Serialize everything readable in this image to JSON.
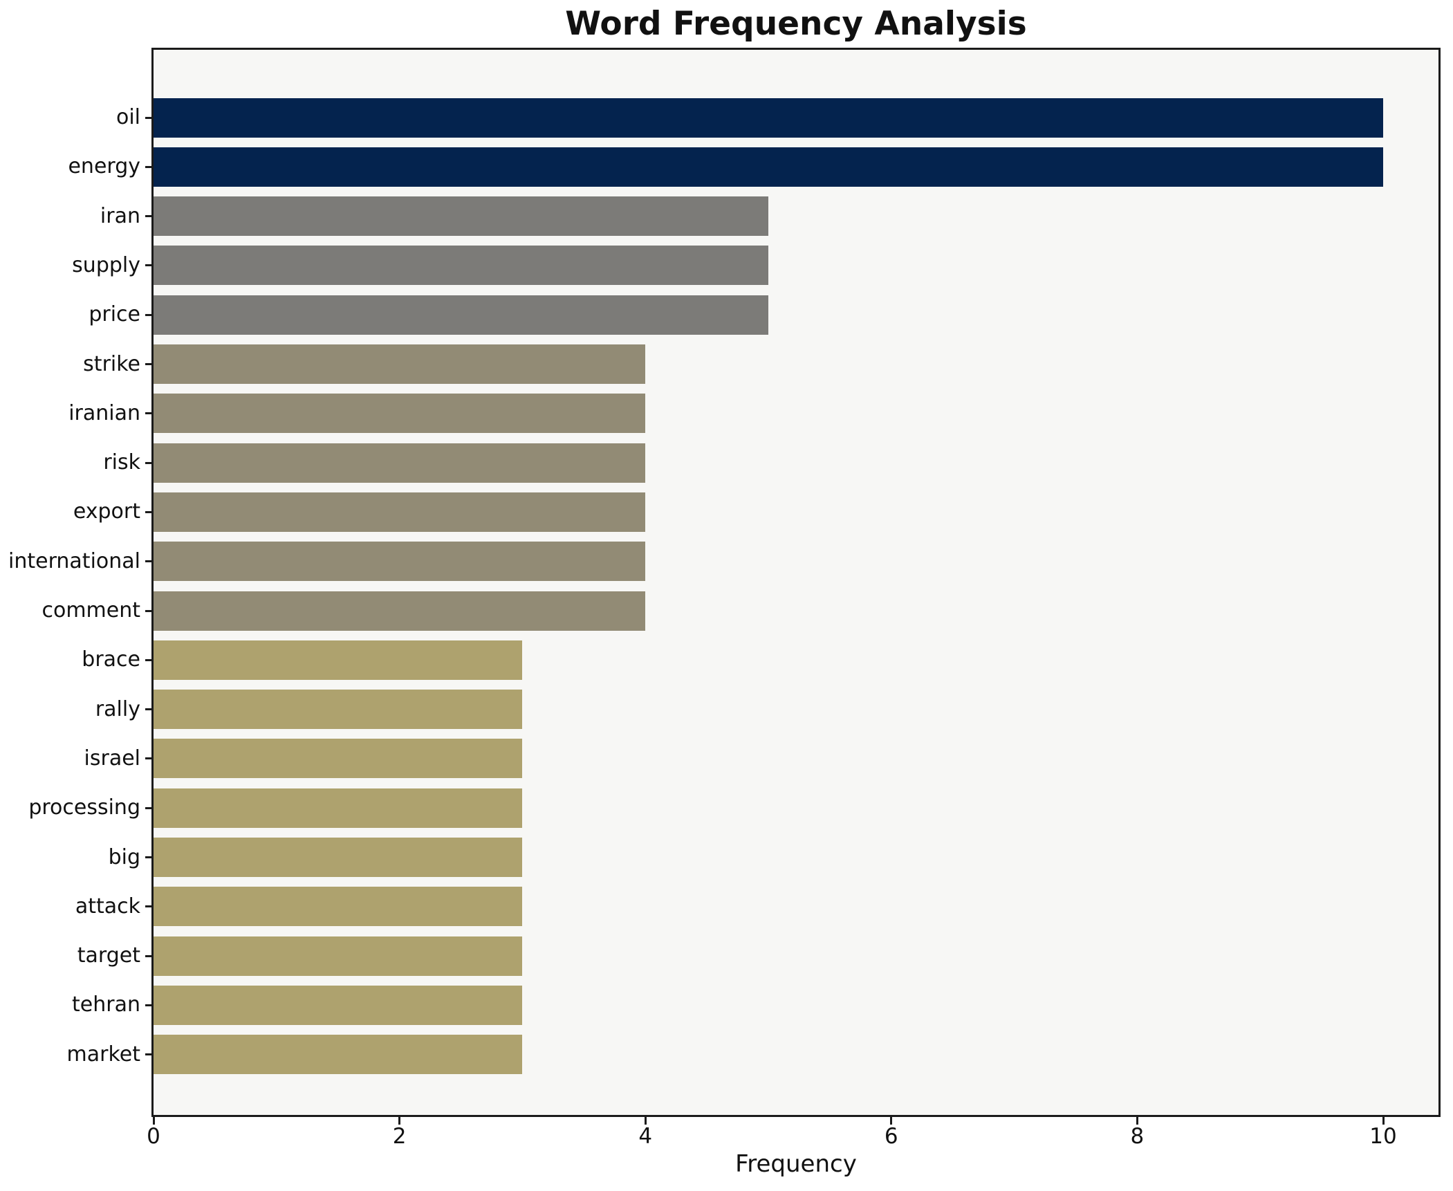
{
  "chart_data": {
    "type": "bar",
    "orientation": "horizontal",
    "title": "Word Frequency Analysis",
    "xlabel": "Frequency",
    "ylabel": "",
    "categories": [
      "oil",
      "energy",
      "iran",
      "supply",
      "price",
      "strike",
      "iranian",
      "risk",
      "export",
      "international",
      "comment",
      "brace",
      "rally",
      "israel",
      "processing",
      "big",
      "attack",
      "target",
      "tehran",
      "market"
    ],
    "values": [
      10,
      10,
      5,
      5,
      5,
      4,
      4,
      4,
      4,
      4,
      4,
      3,
      3,
      3,
      3,
      3,
      3,
      3,
      3,
      3
    ],
    "bar_colors": [
      "#04234e",
      "#04234e",
      "#7c7b78",
      "#7c7b78",
      "#7c7b78",
      "#928b75",
      "#928b75",
      "#928b75",
      "#928b75",
      "#928b75",
      "#928b75",
      "#aea26e",
      "#aea26e",
      "#aea26e",
      "#aea26e",
      "#aea26e",
      "#aea26e",
      "#aea26e",
      "#aea26e",
      "#aea26e"
    ],
    "x_ticks": [
      0,
      2,
      4,
      6,
      8,
      10
    ],
    "xlim": [
      0,
      10.45
    ],
    "grid": false,
    "legend": null,
    "colors": {
      "figure_background": "#ffffff",
      "plot_background": "#f7f7f5",
      "axis": "#1b1b1b",
      "text": "#111111"
    }
  }
}
